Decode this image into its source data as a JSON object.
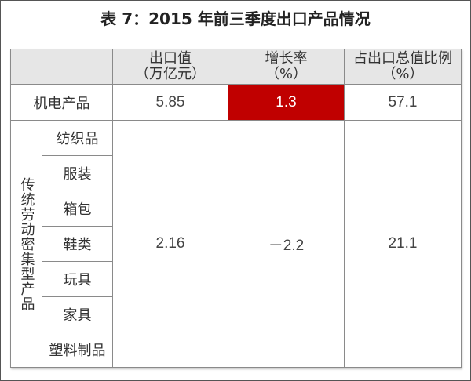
{
  "title": "表 7：2015 年前三季度出口产品情况",
  "header": {
    "col1": {
      "line1": "出口值",
      "line2": "（万亿元）"
    },
    "col2": {
      "line1": "增长率",
      "line2": "（%）"
    },
    "col3": {
      "line1": "占出口总值比例",
      "line2": "（%）"
    }
  },
  "row_mechanical": {
    "label": "机电产品",
    "export_value": "5.85",
    "growth": "1.3",
    "share": "57.1"
  },
  "group_traditional": {
    "label": "传统劳动密集型产品",
    "items": [
      "纺织品",
      "服装",
      "箱包",
      "鞋类",
      "玩具",
      "家具",
      "塑料制品"
    ],
    "export_value": "2.16",
    "growth": "－2.2",
    "share": "21.1"
  },
  "colors": {
    "highlight": "#c00000",
    "header_bg": "#e6e6e6"
  }
}
